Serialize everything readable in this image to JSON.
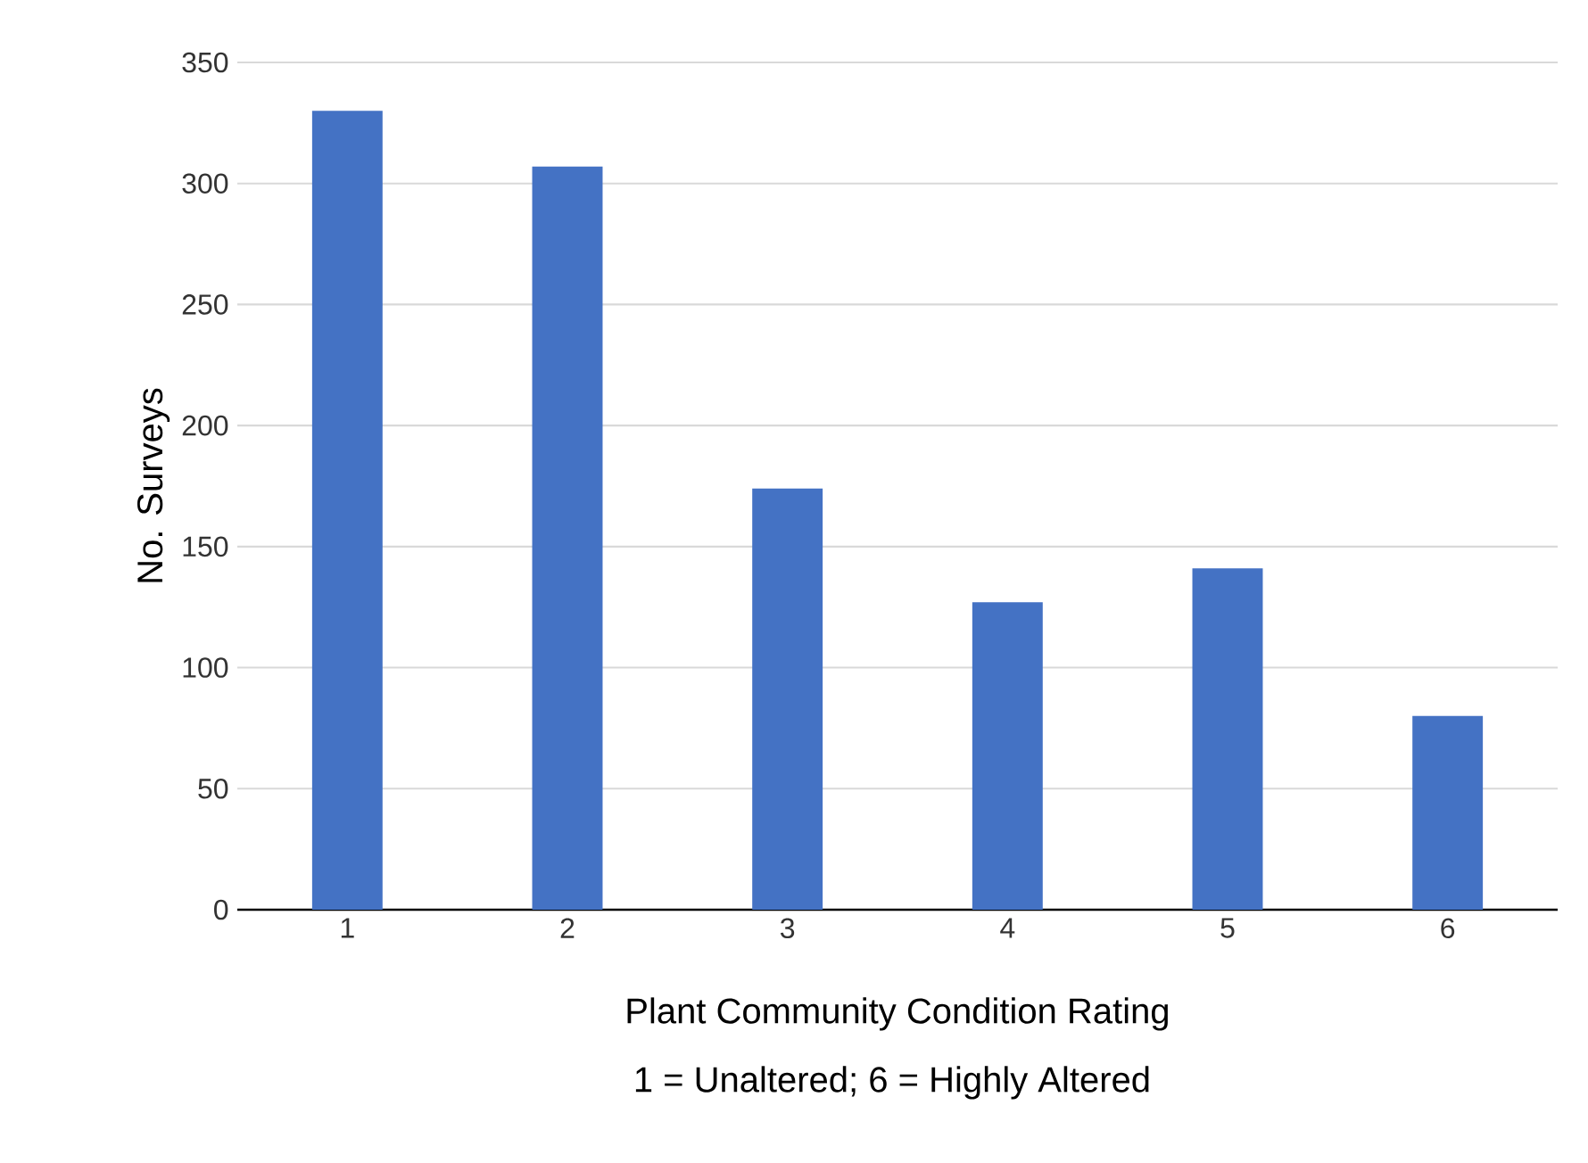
{
  "chart_data": {
    "type": "bar",
    "xlabel": "Plant Community Condition Rating",
    "ylabel": "No. Surveys",
    "annotations": [
      "1 = Unaltered; 6 = Highly Altered"
    ],
    "categories": [
      "1",
      "2",
      "3",
      "4",
      "5",
      "6"
    ],
    "values": [
      330,
      307,
      174,
      127,
      141,
      80
    ],
    "color": "#4472c4",
    "ylim": [
      0,
      350
    ],
    "yticks": [
      0,
      50,
      100,
      150,
      200,
      250,
      300,
      350
    ],
    "grid": "y"
  }
}
